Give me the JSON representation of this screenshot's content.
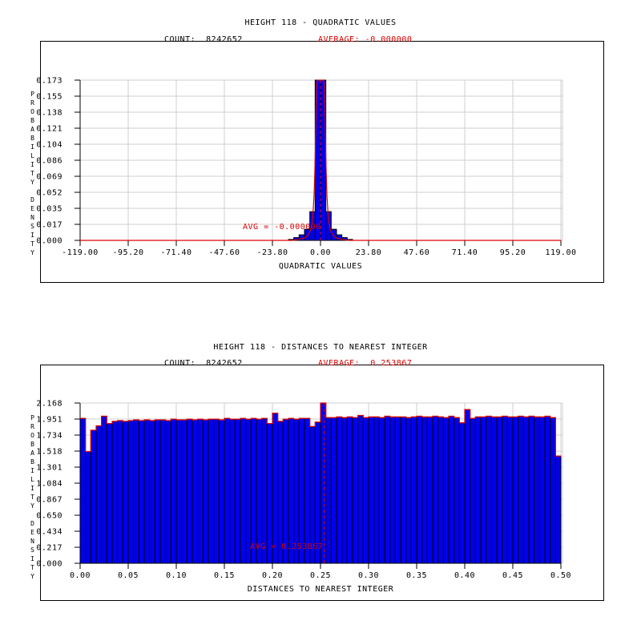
{
  "colors": {
    "bar_fill": "#0000ee",
    "bar_stroke": "#000000",
    "accent_red": "#dd0000",
    "grid": "#cfcfcf",
    "text": "#000000",
    "background": "#ffffff"
  },
  "chart_data": [
    {
      "type": "bar",
      "title": "HEIGHT 118 - QUADRATIC VALUES",
      "count_label": "COUNT:  8242652",
      "average_label": "AVERAGE: -0.000000",
      "avg_annotation": "AVG = -0.000000",
      "avg_value": 0.0,
      "xlabel": "QUADRATIC VALUES",
      "ylabel": "PROBABILITY DENSITY",
      "xlim": [
        -119.0,
        119.0
      ],
      "ylim": [
        0,
        0.173
      ],
      "grid": "on",
      "x_tick_labels": [
        "-119.00",
        "-95.20",
        "-71.40",
        "-47.60",
        "-23.80",
        "0.00",
        "23.80",
        "47.60",
        "71.40",
        "95.20",
        "119.00"
      ],
      "y_tick_labels": [
        "0.000",
        "0.017",
        "0.035",
        "0.052",
        "0.069",
        "0.086",
        "0.104",
        "0.121",
        "0.138",
        "0.155",
        "0.173"
      ],
      "bins": {
        "x0": -119.0,
        "width": 2.6444,
        "start": 39,
        "values": [
          0.001,
          0.003,
          0.006,
          0.012,
          0.031,
          0.173,
          0.173,
          0.031,
          0.012,
          0.006,
          0.003,
          0.001
        ]
      },
      "curve_points": [
        [
          -119,
          0
        ],
        [
          -14,
          0
        ],
        [
          -11,
          0.001
        ],
        [
          -9,
          0.002
        ],
        [
          -7.5,
          0.003
        ],
        [
          -6.5,
          0.005
        ],
        [
          -5.5,
          0.008
        ],
        [
          -4.8,
          0.012
        ],
        [
          -4.2,
          0.019
        ],
        [
          -3.7,
          0.03
        ],
        [
          -3.2,
          0.048
        ],
        [
          -2.8,
          0.075
        ],
        [
          -2.5,
          0.105
        ],
        [
          -2.2,
          0.14
        ],
        [
          -2.0,
          0.16
        ],
        [
          -1.8,
          0.17
        ],
        [
          -1.5,
          0.173
        ],
        [
          1.5,
          0.173
        ],
        [
          1.8,
          0.17
        ],
        [
          2.0,
          0.16
        ],
        [
          2.2,
          0.14
        ],
        [
          2.5,
          0.105
        ],
        [
          2.8,
          0.075
        ],
        [
          3.2,
          0.048
        ],
        [
          3.7,
          0.03
        ],
        [
          4.2,
          0.019
        ],
        [
          4.8,
          0.012
        ],
        [
          5.5,
          0.008
        ],
        [
          6.5,
          0.005
        ],
        [
          7.5,
          0.003
        ],
        [
          9,
          0.002
        ],
        [
          11,
          0.001
        ],
        [
          14,
          0
        ],
        [
          119,
          0
        ]
      ]
    },
    {
      "type": "bar",
      "title": "HEIGHT 118 - DISTANCES TO NEAREST INTEGER",
      "count_label": "COUNT:  8242652",
      "average_label": "AVERAGE:  0.253867",
      "avg_annotation": "AVG = 0.253867",
      "avg_value": 0.253867,
      "xlabel": "DISTANCES TO NEAREST INTEGER",
      "ylabel": "PROBABILITY DENSITY",
      "xlim": [
        0.0,
        0.5
      ],
      "ylim": [
        0,
        2.168
      ],
      "grid": "on",
      "x_tick_labels": [
        "0.00",
        "0.05",
        "0.10",
        "0.15",
        "0.20",
        "0.25",
        "0.30",
        "0.35",
        "0.40",
        "0.45",
        "0.50"
      ],
      "y_tick_labels": [
        "0.000",
        "0.217",
        "0.434",
        "0.650",
        "0.867",
        "1.084",
        "1.301",
        "1.518",
        "1.734",
        "1.951",
        "2.168"
      ],
      "bins": {
        "x0": 0.0,
        "width": 0.0055556,
        "start": 0,
        "values": [
          1.96,
          1.51,
          1.8,
          1.86,
          1.99,
          1.89,
          1.92,
          1.93,
          1.92,
          1.93,
          1.94,
          1.93,
          1.94,
          1.93,
          1.94,
          1.94,
          1.93,
          1.95,
          1.94,
          1.94,
          1.95,
          1.94,
          1.95,
          1.94,
          1.95,
          1.95,
          1.94,
          1.96,
          1.95,
          1.95,
          1.96,
          1.95,
          1.96,
          1.95,
          1.96,
          1.89,
          2.03,
          1.92,
          1.95,
          1.96,
          1.95,
          1.96,
          1.96,
          1.85,
          1.91,
          2.17,
          1.97,
          1.97,
          1.98,
          1.97,
          1.98,
          1.97,
          2.0,
          1.97,
          1.98,
          1.98,
          1.97,
          1.99,
          1.98,
          1.98,
          1.98,
          1.97,
          1.98,
          1.99,
          1.98,
          1.98,
          1.99,
          1.98,
          1.97,
          1.99,
          1.97,
          1.9,
          2.08,
          1.96,
          1.98,
          1.98,
          1.99,
          1.98,
          1.98,
          1.99,
          1.98,
          1.98,
          1.99,
          1.98,
          1.99,
          1.98,
          1.98,
          1.99,
          1.97,
          1.45
        ]
      },
      "curve": "step"
    }
  ]
}
